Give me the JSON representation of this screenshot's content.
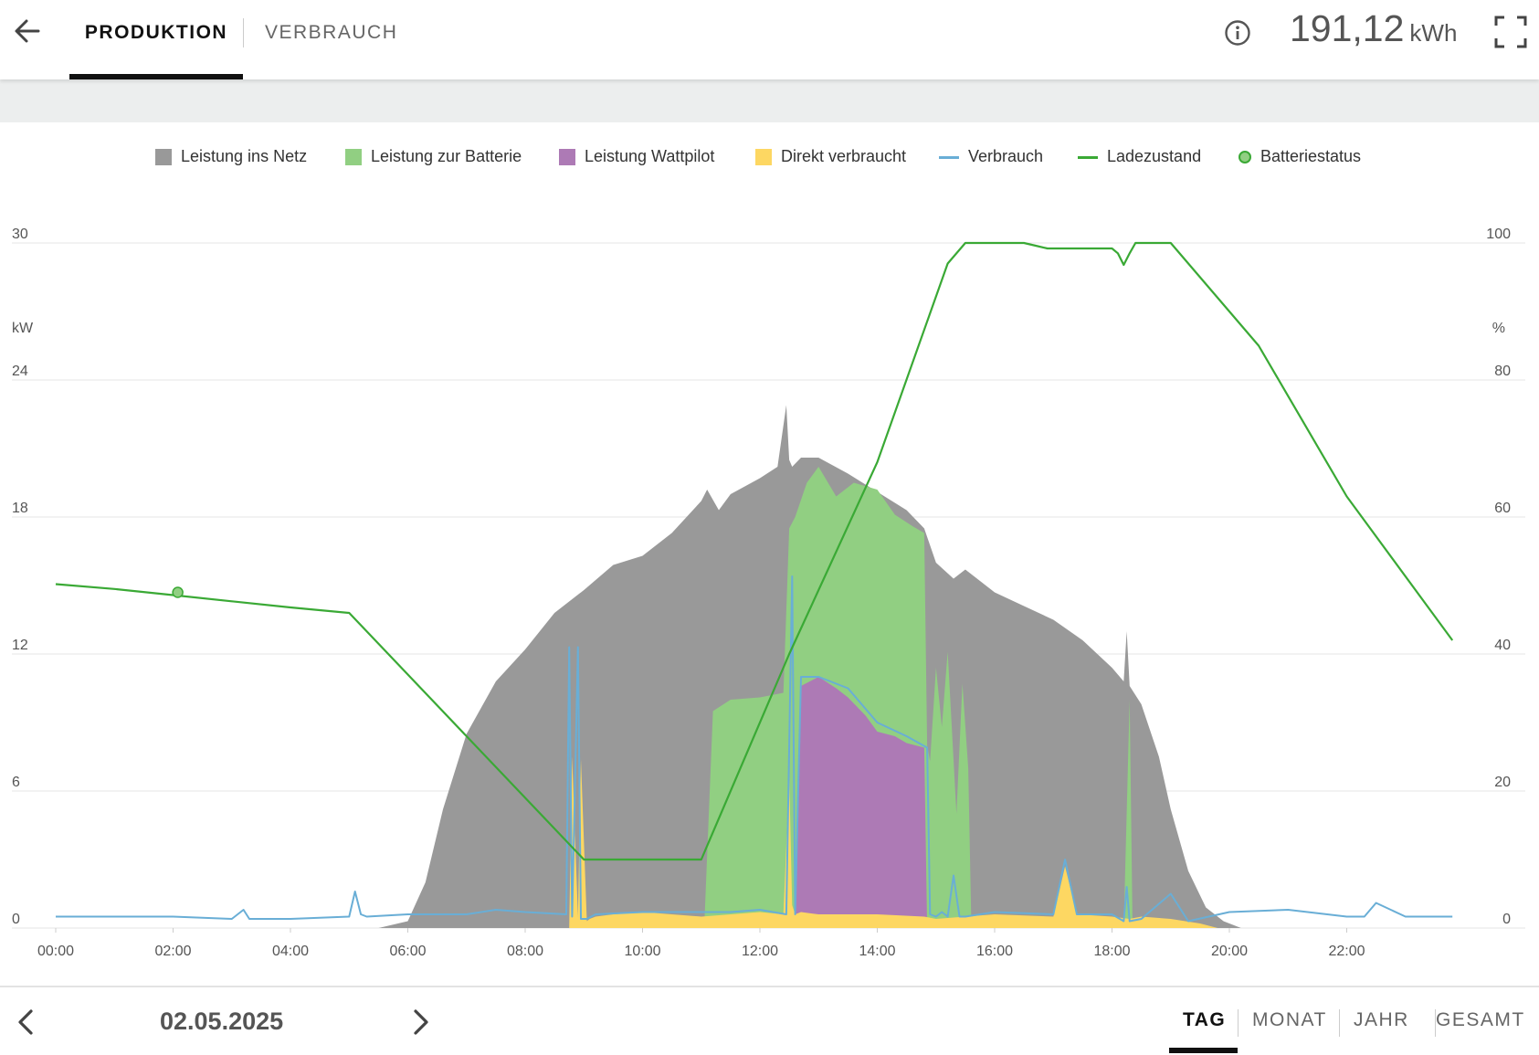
{
  "header": {
    "tabs": [
      {
        "label": "PRODUKTION",
        "active": true
      },
      {
        "label": "VERBRAUCH",
        "active": false
      }
    ],
    "total_value": "191,12",
    "total_unit": "kWh",
    "icons": [
      "arrow-left-icon",
      "info-icon",
      "fullscreen-icon"
    ]
  },
  "legend": [
    {
      "label": "Leistung ins Netz",
      "color": "#999999",
      "kind": "box"
    },
    {
      "label": "Leistung zur Batterie",
      "color": "#91cf82",
      "kind": "box"
    },
    {
      "label": "Leistung Wattpilot",
      "color": "#ad7ab5",
      "kind": "box"
    },
    {
      "label": "Direkt verbraucht",
      "color": "#fdd762",
      "kind": "box"
    },
    {
      "label": "Verbrauch",
      "color": "#69aed6",
      "kind": "line"
    },
    {
      "label": "Ladezustand",
      "color": "#3aa935",
      "kind": "line"
    },
    {
      "label": "Batteriestatus",
      "color": "#91cf82",
      "kind": "dot"
    }
  ],
  "footer": {
    "date": "02.05.2025",
    "periods": [
      {
        "label": "TAG",
        "active": true
      },
      {
        "label": "MONAT",
        "active": false
      },
      {
        "label": "JAHR",
        "active": false
      },
      {
        "label": "GESAMT",
        "active": false
      }
    ]
  },
  "chart_data": {
    "type": "area",
    "y_left_unit": "kW",
    "y_right_unit": "%",
    "ylim_left": [
      0,
      30
    ],
    "ylim_right": [
      0,
      100
    ],
    "y_left_ticks": [
      "0",
      "6",
      "12",
      "18",
      "24",
      "30"
    ],
    "y_right_ticks": [
      "0",
      "20",
      "40",
      "60",
      "80",
      "100"
    ],
    "x_range_hours": [
      0,
      24
    ],
    "x_ticks": [
      "00:00",
      "02:00",
      "04:00",
      "06:00",
      "08:00",
      "10:00",
      "12:00",
      "14:00",
      "16:00",
      "18:00",
      "20:00",
      "22:00"
    ],
    "grid": true,
    "series": [
      {
        "name": "Leistung ins Netz",
        "type": "area",
        "axis": "left",
        "x": [
          5.5,
          6.0,
          6.3,
          6.6,
          7.0,
          7.5,
          8.0,
          8.5,
          9.0,
          9.5,
          10.0,
          10.5,
          11.0,
          11.1,
          11.3,
          11.5,
          12.0,
          12.3,
          12.45,
          12.5,
          12.55,
          12.7,
          13.0,
          13.5,
          14.0,
          14.5,
          14.8,
          15.0,
          15.3,
          15.5,
          16.0,
          16.5,
          17.0,
          17.5,
          18.0,
          18.2,
          18.25,
          18.3,
          18.5,
          18.8,
          19.0,
          19.3,
          19.6,
          19.9,
          20.2
        ],
        "values": [
          0,
          0.3,
          2.0,
          5.2,
          8.5,
          10.8,
          12.2,
          13.8,
          14.8,
          15.9,
          16.3,
          17.3,
          18.7,
          19.2,
          18.3,
          19.0,
          19.7,
          20.2,
          22.9,
          20.5,
          20.2,
          20.6,
          20.6,
          19.9,
          19.1,
          18.3,
          17.5,
          16.0,
          15.3,
          15.7,
          14.7,
          14.1,
          13.5,
          12.6,
          11.4,
          10.8,
          13.0,
          10.6,
          9.8,
          7.5,
          5.2,
          2.5,
          0.9,
          0.3,
          0
        ]
      },
      {
        "name": "Leistung zur Batterie",
        "type": "area",
        "axis": "left",
        "x": [
          11.05,
          11.2,
          11.5,
          12.0,
          12.4,
          12.5,
          12.6,
          12.8,
          13.0,
          13.3,
          13.6,
          14.0,
          14.3,
          14.6,
          14.8,
          14.85,
          14.9,
          15.0,
          15.1,
          15.2,
          15.35,
          15.45,
          15.55,
          15.6,
          18.2,
          18.3,
          18.35
        ],
        "values": [
          0,
          9.5,
          10.0,
          10.1,
          10.3,
          17.5,
          18.0,
          19.5,
          20.2,
          18.9,
          19.5,
          19.2,
          18.1,
          17.6,
          17.3,
          8.0,
          7.3,
          11.4,
          8.8,
          12.1,
          5.0,
          10.7,
          7.0,
          0.5,
          0,
          10.0,
          0
        ]
      },
      {
        "name": "Leistung Wattpilot",
        "type": "area",
        "axis": "left",
        "x": [
          12.6,
          12.7,
          13.0,
          13.3,
          13.5,
          13.8,
          14.0,
          14.3,
          14.5,
          14.8,
          14.85
        ],
        "values": [
          0,
          10.6,
          11.0,
          10.5,
          10.1,
          9.3,
          8.6,
          8.4,
          8.1,
          7.9,
          0
        ]
      },
      {
        "name": "Direkt verbraucht",
        "type": "area",
        "axis": "left",
        "x": [
          8.75,
          8.8,
          8.9,
          8.95,
          9.05,
          9.1,
          9.2,
          9.5,
          10.0,
          10.5,
          11.0,
          11.5,
          12.0,
          12.4,
          12.5,
          12.55,
          12.6,
          12.7,
          13.0,
          14.0,
          14.8,
          15.0,
          15.5,
          16.0,
          17.0,
          17.2,
          17.4,
          18.0,
          18.3,
          18.5,
          19.0,
          19.5,
          19.8
        ],
        "values": [
          0,
          7.5,
          0.5,
          7.4,
          0.3,
          0.4,
          0.5,
          0.6,
          0.7,
          0.6,
          0.5,
          0.6,
          0.7,
          0.6,
          6.6,
          1.0,
          0.6,
          0.7,
          0.6,
          0.6,
          0.5,
          0.4,
          0.5,
          0.6,
          0.5,
          2.7,
          0.6,
          0.5,
          0.4,
          0.5,
          0.4,
          0.2,
          0
        ]
      },
      {
        "name": "Verbrauch",
        "type": "line",
        "axis": "left",
        "x": [
          0,
          1.0,
          2.0,
          3.0,
          3.2,
          3.3,
          3.4,
          4.0,
          5.0,
          5.1,
          5.2,
          5.3,
          6.0,
          7.0,
          7.5,
          8.0,
          8.7,
          8.75,
          8.8,
          8.9,
          8.95,
          9.05,
          9.2,
          10.0,
          11.0,
          11.5,
          12.0,
          12.45,
          12.55,
          12.6,
          12.7,
          13.0,
          13.5,
          14.0,
          14.5,
          14.85,
          14.9,
          15.0,
          15.1,
          15.2,
          15.3,
          15.4,
          15.5,
          16.0,
          17.0,
          17.2,
          17.4,
          18.0,
          18.2,
          18.25,
          18.3,
          18.5,
          19.0,
          19.3,
          20.0,
          21.0,
          22.0,
          22.3,
          22.5,
          23.0,
          23.8
        ],
        "values": [
          0.5,
          0.5,
          0.5,
          0.4,
          0.8,
          0.4,
          0.4,
          0.4,
          0.5,
          1.6,
          0.6,
          0.5,
          0.6,
          0.6,
          0.8,
          0.7,
          0.6,
          12.3,
          0.5,
          12.3,
          0.4,
          0.4,
          0.6,
          0.7,
          0.7,
          0.7,
          0.8,
          0.6,
          15.4,
          0.6,
          11.0,
          11.0,
          10.5,
          9.0,
          8.4,
          7.9,
          0.6,
          0.5,
          0.7,
          0.5,
          2.3,
          0.5,
          0.5,
          0.7,
          0.6,
          3.0,
          0.6,
          0.6,
          0.3,
          1.8,
          0.3,
          0.4,
          1.5,
          0.3,
          0.7,
          0.8,
          0.5,
          0.5,
          1.1,
          0.5,
          0.5
        ]
      },
      {
        "name": "Ladezustand",
        "type": "line",
        "axis": "right",
        "x": [
          0,
          1.0,
          2.0,
          3.0,
          4.0,
          5.0,
          9.0,
          11.0,
          12.5,
          14.0,
          15.2,
          15.5,
          16.5,
          16.7,
          16.9,
          17.0,
          18.0,
          18.1,
          18.2,
          18.3,
          18.4,
          19.0,
          19.5,
          20.5,
          22.0,
          23.8
        ],
        "values": [
          50.2,
          49.5,
          48.6,
          47.7,
          46.8,
          46.0,
          10.0,
          10.0,
          40.0,
          68.0,
          97.0,
          100.0,
          100.0,
          99.6,
          99.2,
          99.2,
          99.2,
          98.5,
          96.8,
          98.5,
          100.0,
          100.0,
          95.0,
          85.0,
          63.0,
          42.0
        ]
      },
      {
        "name": "Batteriestatus",
        "type": "scatter",
        "axis": "right",
        "x": [
          2.08
        ],
        "values": [
          49.0
        ]
      }
    ]
  }
}
